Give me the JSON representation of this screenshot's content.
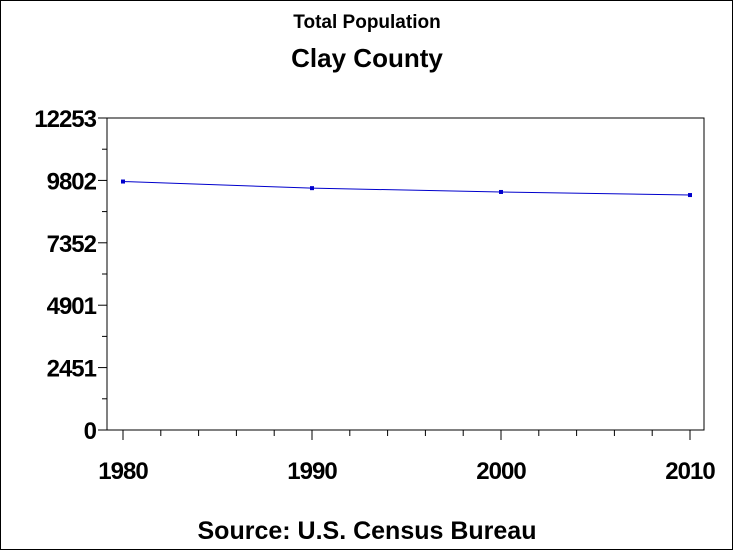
{
  "chart_data": {
    "type": "line",
    "title": "Total Population",
    "subtitle": "Clay County",
    "footnote": "Source: U.S. Census Bureau",
    "xlabel": "",
    "ylabel": "",
    "x": [
      1980,
      1990,
      2000,
      2010
    ],
    "series": [
      {
        "values": [
          9758,
          9498,
          9348,
          9227
        ],
        "color": "#0000cc"
      }
    ],
    "xlim": [
      1980,
      2010
    ],
    "ylim": [
      0,
      12253
    ],
    "xticks": [
      "1980",
      "1990",
      "2000",
      "2010"
    ],
    "yticks": [
      "0",
      "2451",
      "4901",
      "7352",
      "9802",
      "12253"
    ],
    "grid": false,
    "legend": "none"
  }
}
